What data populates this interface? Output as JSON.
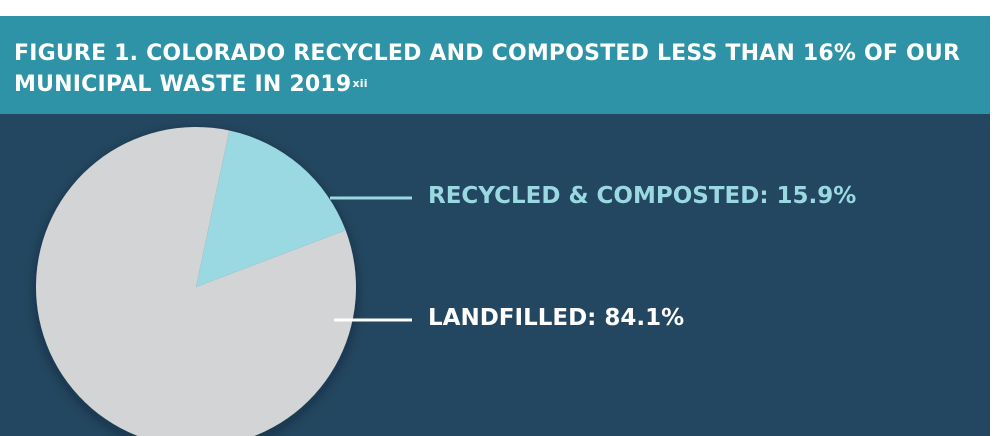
{
  "title_main": "FIGURE 1. COLORADO RECYCLED AND COMPOSTED LESS THAN 16% OF OUR MUNICIPAL WASTE IN 2019",
  "title_superscript": "xii",
  "colors": {
    "header_bg": "#2e93a6",
    "panel_bg": "#234760",
    "recycled": "#9ad8e2",
    "landfilled": "#d3d4d6",
    "label_light": "#9ad8e2",
    "label_white": "#ffffff"
  },
  "chart_data": {
    "type": "pie",
    "title": "FIGURE 1. COLORADO RECYCLED AND COMPOSTED LESS THAN 16% OF OUR MUNICIPAL WASTE IN 2019",
    "slices": [
      {
        "label": "RECYCLED & COMPOSTED: 15.9%",
        "value": 15.9,
        "color": "#9ad8e2"
      },
      {
        "label": "LANDFILLED: 84.1%",
        "value": 84.1,
        "color": "#d3d4d6"
      }
    ],
    "unit": "%"
  }
}
